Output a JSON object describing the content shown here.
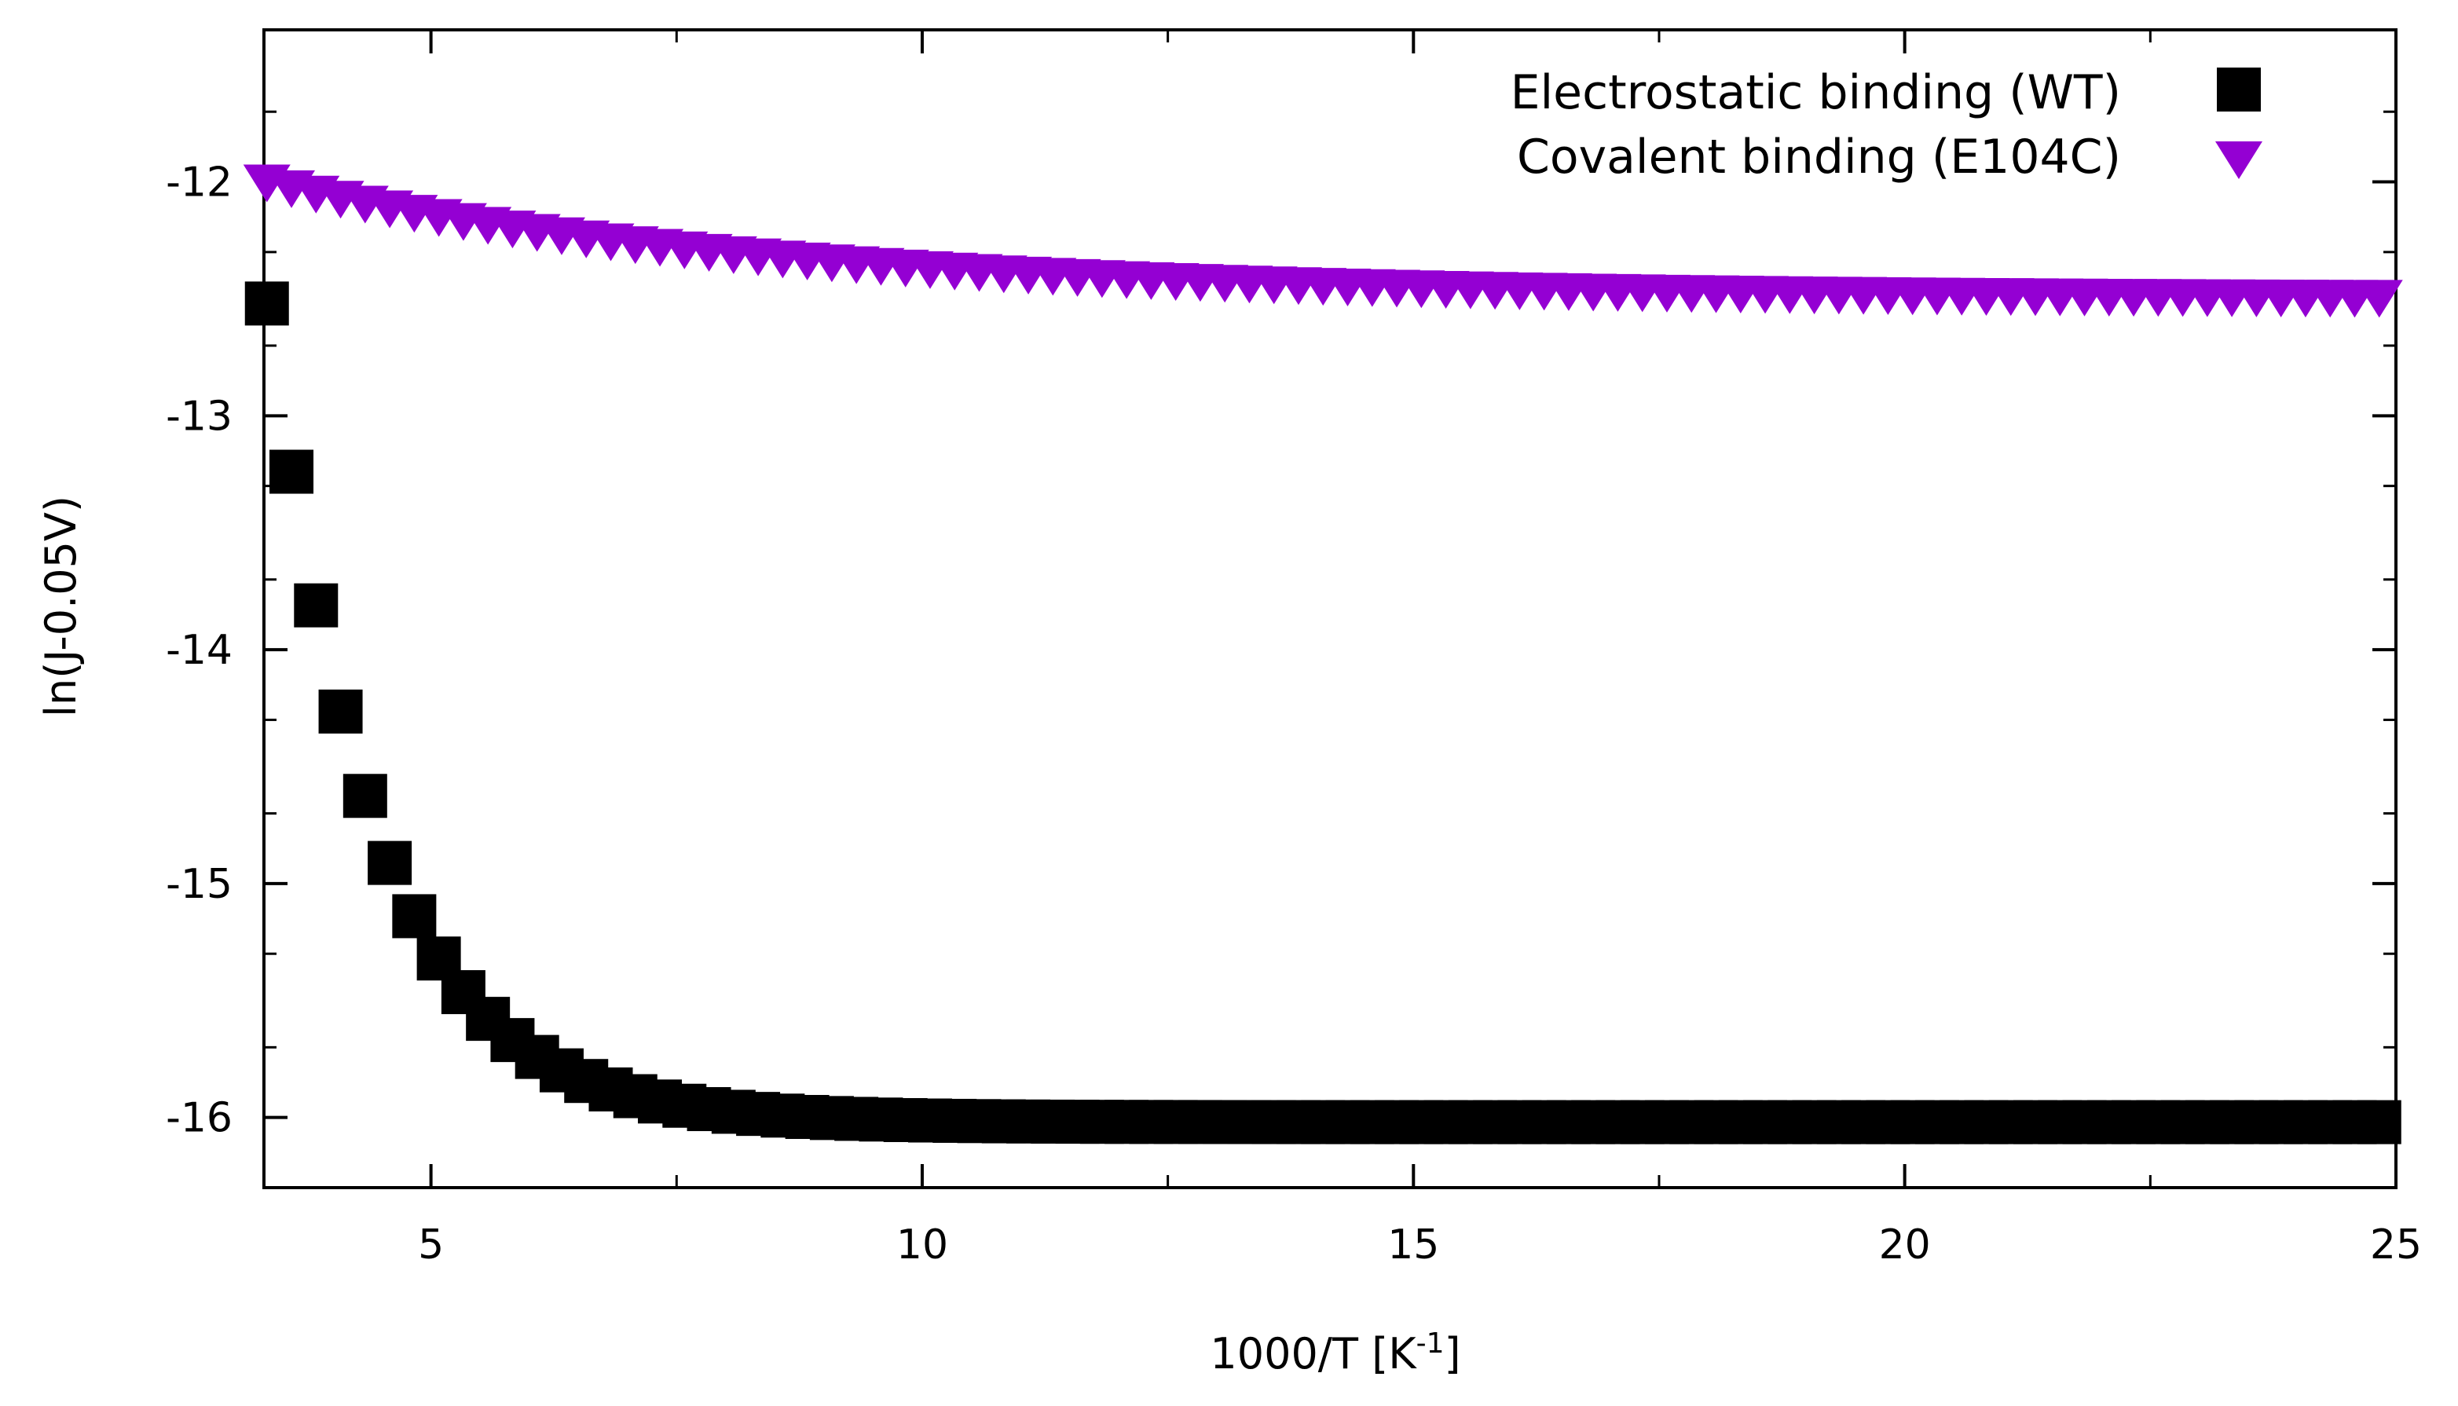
{
  "chart_data": {
    "type": "scatter",
    "xlabel": "1000/T [K",
    "xlabel_superscript": "-1",
    "xlabel_suffix": "]",
    "ylabel": "ln(J-0.05V)",
    "xlim": [
      3.3,
      25
    ],
    "ylim": [
      -16.3,
      -11.35
    ],
    "x_ticks": [
      5,
      10,
      15,
      20,
      25
    ],
    "x_tick_labels": [
      "5",
      "10",
      "15",
      "20",
      "25"
    ],
    "x_minor_ticks": [
      7.5,
      12.5,
      17.5,
      22.5
    ],
    "y_ticks": [
      -16,
      -15,
      -14,
      -13,
      -12
    ],
    "y_tick_labels": [
      "-16",
      "-15",
      "-14",
      "-13",
      "-12"
    ],
    "y_minor_ticks": [
      -15.7,
      -15.3,
      -14.7,
      -14.3,
      -13.7,
      -13.3,
      -12.7,
      -12.3,
      -11.7
    ],
    "legend_position": "top-right",
    "series": [
      {
        "name": "Electrostatic binding (WT)",
        "marker": "square",
        "color": "#000000",
        "x_start": 3.33,
        "x_step": 0.25,
        "x_end": 25,
        "model": "y = -16.02 + 3.5 * exp(-0.92 * (x - 3.33))"
      },
      {
        "name": "Covalent binding (E104C)",
        "marker": "triangle-down",
        "color": "#9400d3",
        "x_start": 3.33,
        "x_step": 0.25,
        "x_end": 25,
        "model": "y = -12.5 + 0.5 * exp(-0.2 * (x - 3.33))"
      }
    ]
  }
}
